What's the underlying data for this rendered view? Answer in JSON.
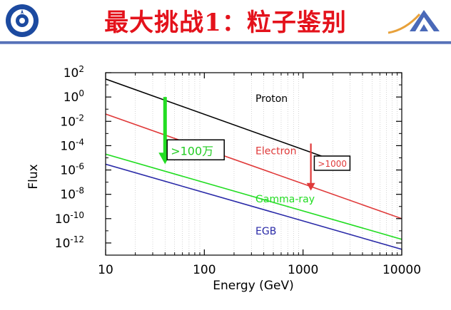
{
  "header": {
    "title": "最大挑战1：粒子鉴别"
  },
  "colors": {
    "title_red": "#e4121b",
    "header_rule": "#3b5aa8",
    "proton": "#000000",
    "electron": "#e03a3a",
    "gamma": "#22dd22",
    "egb": "#2a2aa8",
    "arrow_green": "#22dd22",
    "arrow_red": "#e03a3a"
  },
  "chart_data": {
    "type": "line",
    "xlabel": "Energy (GeV)",
    "ylabel": "Flux",
    "xscale": "log",
    "yscale": "log",
    "xlim": [
      10,
      10000
    ],
    "ylim": [
      1e-13,
      100.0
    ],
    "x_ticks": [
      {
        "value": 10,
        "label": "10"
      },
      {
        "value": 100,
        "label": "100"
      },
      {
        "value": 1000,
        "label": "1000"
      },
      {
        "value": 10000,
        "label": "10000"
      }
    ],
    "y_ticks": [
      {
        "value": 100,
        "base": "10",
        "exp": "2"
      },
      {
        "value": 1,
        "base": "10",
        "exp": "0"
      },
      {
        "value": 0.01,
        "base": "10",
        "exp": "-2"
      },
      {
        "value": 0.0001,
        "base": "10",
        "exp": "-4"
      },
      {
        "value": 1e-06,
        "base": "10",
        "exp": "-6"
      },
      {
        "value": 1e-08,
        "base": "10",
        "exp": "-8"
      },
      {
        "value": 1e-10,
        "base": "10",
        "exp": "-10"
      },
      {
        "value": 1e-12,
        "base": "10",
        "exp": "-12"
      }
    ],
    "series": [
      {
        "name": "Proton",
        "color": "#000000",
        "x": [
          10,
          3000
        ],
        "y": [
          30,
          2e-06
        ]
      },
      {
        "name": "Electron",
        "color": "#e03a3a",
        "x": [
          10,
          10000
        ],
        "y": [
          0.04,
          1e-10
        ]
      },
      {
        "name": "Gamma-ray",
        "color": "#22dd22",
        "x": [
          10,
          10000
        ],
        "y": [
          2e-05,
          2e-12
        ]
      },
      {
        "name": "EGB",
        "color": "#2a2aa8",
        "x": [
          10,
          10000
        ],
        "y": [
          3e-06,
          3e-13
        ]
      }
    ],
    "series_labels": [
      {
        "name": "Proton",
        "x": 330,
        "y": 0.4
      },
      {
        "name": "Electron",
        "x": 330,
        "y": 2e-05
      },
      {
        "name": "Gamma-ray",
        "x": 330,
        "y": 2.2e-09
      },
      {
        "name": "EGB",
        "x": 330,
        "y": 5e-12
      }
    ],
    "annotations": [
      {
        "text": ">100万",
        "arrow_color": "#22dd22",
        "arrow_x": 40,
        "arrow_from": 1,
        "arrow_to": 3e-06,
        "box_x": 42,
        "box_y": 0.0003
      },
      {
        "text": ">1000",
        "arrow_color": "#e03a3a",
        "arrow_x": 1200,
        "arrow_from": 0.00015,
        "arrow_to": 2e-08,
        "box_x": 1300,
        "box_y": 1.4e-05
      }
    ]
  }
}
